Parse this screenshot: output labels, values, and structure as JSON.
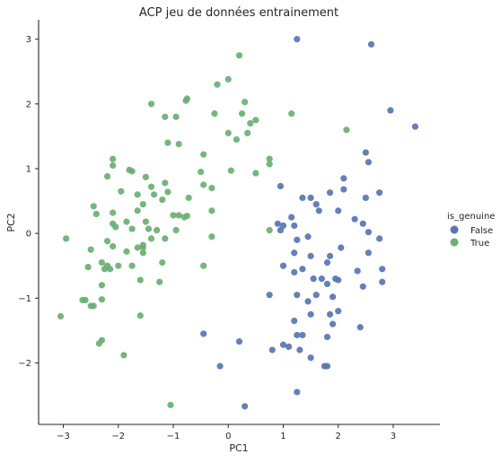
{
  "chart_data": {
    "type": "scatter",
    "title": "ACP jeu de données entrainement",
    "xlabel": "PC1",
    "ylabel": "PC2",
    "xlim": [
      -3.45,
      3.85
    ],
    "ylim": [
      -2.95,
      3.3
    ],
    "xticks": [
      -3,
      -2,
      -1,
      0,
      1,
      2,
      3
    ],
    "yticks": [
      -2,
      -1,
      0,
      1,
      2,
      3
    ],
    "grid": false,
    "legend": {
      "title": "is_genuine",
      "placement": "right",
      "entries": [
        "False",
        "True"
      ]
    },
    "series": [
      {
        "name": "False",
        "color": "#5875b2",
        "points": [
          [
            1.25,
            3.0
          ],
          [
            2.6,
            2.92
          ],
          [
            2.95,
            1.9
          ],
          [
            3.4,
            1.65
          ],
          [
            2.5,
            1.25
          ],
          [
            2.55,
            1.1
          ],
          [
            2.1,
            0.85
          ],
          [
            0.95,
            0.73
          ],
          [
            2.1,
            0.68
          ],
          [
            1.85,
            0.63
          ],
          [
            2.75,
            0.63
          ],
          [
            1.35,
            0.55
          ],
          [
            1.5,
            0.55
          ],
          [
            2.5,
            0.55
          ],
          [
            1.6,
            0.45
          ],
          [
            1.65,
            0.35
          ],
          [
            2.0,
            0.35
          ],
          [
            1.15,
            0.25
          ],
          [
            2.3,
            0.22
          ],
          [
            0.9,
            0.15
          ],
          [
            2.45,
            0.15
          ],
          [
            1.0,
            0.12
          ],
          [
            1.2,
            0.12
          ],
          [
            0.95,
            0.05
          ],
          [
            2.55,
            0.02
          ],
          [
            1.45,
            -0.05
          ],
          [
            2.75,
            -0.08
          ],
          [
            1.25,
            -0.1
          ],
          [
            2.05,
            -0.22
          ],
          [
            1.2,
            -0.3
          ],
          [
            2.55,
            -0.3
          ],
          [
            1.85,
            -0.35
          ],
          [
            1.5,
            -0.35
          ],
          [
            1.35,
            -0.55
          ],
          [
            1.8,
            -0.45
          ],
          [
            1.0,
            -0.5
          ],
          [
            2.35,
            -0.58
          ],
          [
            1.2,
            -0.6
          ],
          [
            2.8,
            -0.55
          ],
          [
            1.55,
            -0.7
          ],
          [
            1.7,
            -0.7
          ],
          [
            1.95,
            -0.7
          ],
          [
            2.0,
            -0.72
          ],
          [
            2.8,
            -0.75
          ],
          [
            1.8,
            -0.78
          ],
          [
            2.45,
            -0.82
          ],
          [
            0.75,
            -0.95
          ],
          [
            1.25,
            -0.95
          ],
          [
            1.6,
            -0.95
          ],
          [
            1.9,
            -0.98
          ],
          [
            1.45,
            -1.05
          ],
          [
            1.5,
            -1.25
          ],
          [
            1.85,
            -1.25
          ],
          [
            2.0,
            -1.2
          ],
          [
            1.2,
            -1.35
          ],
          [
            1.9,
            -1.4
          ],
          [
            2.4,
            -1.45
          ],
          [
            -0.45,
            -1.55
          ],
          [
            1.25,
            -1.57
          ],
          [
            1.35,
            -1.57
          ],
          [
            1.8,
            -1.6
          ],
          [
            0.2,
            -1.67
          ],
          [
            1.0,
            -1.72
          ],
          [
            1.1,
            -1.75
          ],
          [
            0.8,
            -1.8
          ],
          [
            1.3,
            -1.8
          ],
          [
            1.5,
            -1.92
          ],
          [
            -0.15,
            -2.05
          ],
          [
            1.75,
            -2.05
          ],
          [
            1.8,
            -2.05
          ],
          [
            1.25,
            -2.45
          ],
          [
            0.3,
            -2.67
          ]
        ]
      },
      {
        "name": "True",
        "color": "#6aaf73",
        "points": [
          [
            0.2,
            2.75
          ],
          [
            -0.2,
            2.3
          ],
          [
            0.0,
            2.38
          ],
          [
            -1.4,
            2.0
          ],
          [
            -0.75,
            2.08
          ],
          [
            -0.77,
            2.05
          ],
          [
            0.25,
            1.85
          ],
          [
            0.3,
            2.03
          ],
          [
            -1.15,
            1.8
          ],
          [
            -0.95,
            1.8
          ],
          [
            -0.25,
            1.85
          ],
          [
            0.5,
            1.75
          ],
          [
            0.4,
            1.7
          ],
          [
            1.15,
            1.85
          ],
          [
            2.15,
            1.6
          ],
          [
            0.35,
            1.55
          ],
          [
            0.15,
            1.45
          ],
          [
            -1.1,
            1.4
          ],
          [
            -0.9,
            1.38
          ],
          [
            -0.45,
            1.22
          ],
          [
            0.0,
            1.55
          ],
          [
            -2.1,
            1.15
          ],
          [
            -2.1,
            1.05
          ],
          [
            0.75,
            1.15
          ],
          [
            0.75,
            1.07
          ],
          [
            -1.8,
            0.98
          ],
          [
            -1.75,
            0.96
          ],
          [
            0.05,
            0.97
          ],
          [
            0.5,
            0.93
          ],
          [
            -1.5,
            0.87
          ],
          [
            -0.5,
            0.95
          ],
          [
            -2.2,
            0.88
          ],
          [
            -1.95,
            0.65
          ],
          [
            -1.15,
            0.78
          ],
          [
            -1.4,
            0.72
          ],
          [
            -1.1,
            0.64
          ],
          [
            -1.35,
            0.6
          ],
          [
            -1.65,
            0.6
          ],
          [
            -0.45,
            0.75
          ],
          [
            -0.3,
            0.7
          ],
          [
            -1.2,
            0.52
          ],
          [
            -0.72,
            0.55
          ],
          [
            -1.55,
            0.45
          ],
          [
            -2.45,
            0.42
          ],
          [
            -1.65,
            0.35
          ],
          [
            -0.3,
            0.35
          ],
          [
            -2.1,
            0.32
          ],
          [
            -2.4,
            0.3
          ],
          [
            -1.0,
            0.28
          ],
          [
            -1.5,
            0.18
          ],
          [
            -0.9,
            0.28
          ],
          [
            -0.75,
            0.27
          ],
          [
            -0.8,
            0.25
          ],
          [
            -1.85,
            0.18
          ],
          [
            -2.1,
            0.15
          ],
          [
            -1.75,
            0.07
          ],
          [
            -2.05,
            0.1
          ],
          [
            -1.45,
            0.07
          ],
          [
            -1.3,
            0.05
          ],
          [
            -0.95,
            0.05
          ],
          [
            -0.3,
            -0.05
          ],
          [
            0.75,
            0.05
          ],
          [
            -2.95,
            -0.08
          ],
          [
            -1.4,
            -0.08
          ],
          [
            -1.15,
            -0.08
          ],
          [
            -2.2,
            -0.12
          ],
          [
            -2.1,
            -0.2
          ],
          [
            -1.55,
            -0.18
          ],
          [
            -1.55,
            -0.22
          ],
          [
            -1.65,
            -0.22
          ],
          [
            -2.5,
            -0.25
          ],
          [
            -1.55,
            -0.3
          ],
          [
            -1.85,
            -0.28
          ],
          [
            -2.3,
            -0.45
          ],
          [
            -2.15,
            -0.55
          ],
          [
            -2.2,
            -0.5
          ],
          [
            -2.55,
            -0.52
          ],
          [
            -2.25,
            -0.55
          ],
          [
            -2.0,
            -0.5
          ],
          [
            -1.75,
            -0.5
          ],
          [
            -1.2,
            -0.45
          ],
          [
            -0.45,
            -0.5
          ],
          [
            -1.6,
            -0.72
          ],
          [
            -1.25,
            -0.75
          ],
          [
            -2.3,
            -0.8
          ],
          [
            -2.65,
            -1.03
          ],
          [
            -2.6,
            -1.03
          ],
          [
            -2.45,
            -1.12
          ],
          [
            -2.3,
            -1.02
          ],
          [
            -2.5,
            -1.12
          ],
          [
            -3.05,
            -1.28
          ],
          [
            -1.6,
            -1.27
          ],
          [
            -2.3,
            -1.65
          ],
          [
            -2.35,
            -1.7
          ],
          [
            -1.9,
            -1.88
          ],
          [
            -1.05,
            -2.65
          ]
        ]
      }
    ]
  }
}
